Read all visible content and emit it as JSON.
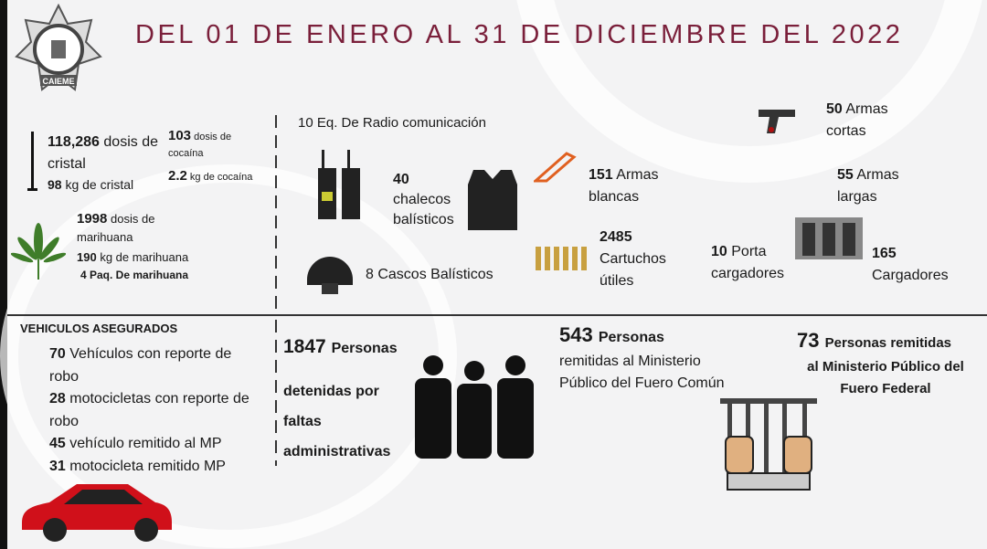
{
  "title": "DEL 01 DE ENERO AL 31 DE DICIEMBRE DEL 2022",
  "logo": {
    "text": "CAIEME",
    "icon": "police-badge-star-icon"
  },
  "drugs": {
    "cristal_num": "118,286",
    "cristal_text": "dosis de cristal",
    "cristal_kg": "98",
    "cristal_kg_text": "kg de cristal",
    "cocaina_num": "103",
    "cocaina_text": "dosis de cocaína",
    "cocaina_kg": "2.2",
    "cocaina_kg_text": "kg de cocaína",
    "mari_num": "1998",
    "mari_text": "dosis de marihuana",
    "mari_kg": "190",
    "mari_kg_text": "kg de marihuana",
    "mari_paq": "4 Paq. De marihuana"
  },
  "equipment": {
    "radio": "10 Eq. De Radio comunicación",
    "chalecos_num": "40",
    "chalecos_text": "chalecos balísticos",
    "cascos": "8 Cascos Balísticos",
    "blancas_num": "151",
    "blancas_text": "Armas blancas",
    "cartuchos_num": "2485",
    "cartuchos_text": "Cartuchos útiles",
    "cortas_num": "50",
    "cortas_text": "Armas cortas",
    "largas_num": "55",
    "largas_text": "Armas largas",
    "porta_num": "10",
    "porta_text": "Porta cargadores",
    "cargadores_num": "165",
    "cargadores_text": "Cargadores"
  },
  "vehicles": {
    "heading": "VEHICULOS ASEGURADOS",
    "items": [
      {
        "num": "70",
        "text": "Vehículos con reporte de robo"
      },
      {
        "num": "28",
        "text": "motocicletas con reporte de robo"
      },
      {
        "num": "45",
        "text": "vehículo remitido al MP"
      },
      {
        "num": "31",
        "text": "motocicleta remitido MP"
      }
    ],
    "car_color": "#d0101a"
  },
  "persons": {
    "admin_num": "1847",
    "admin_word": "Personas",
    "admin_text": "detenidas por faltas administrativas",
    "comun_num": "543",
    "comun_word": "Personas",
    "comun_text": "remitidas al Ministerio Público del Fuero Común",
    "federal_num": "73",
    "federal_word": "Personas remitidas",
    "federal_text": "al Ministerio Público del Fuero Federal"
  },
  "colors": {
    "title": "#7a1f3a"
  }
}
